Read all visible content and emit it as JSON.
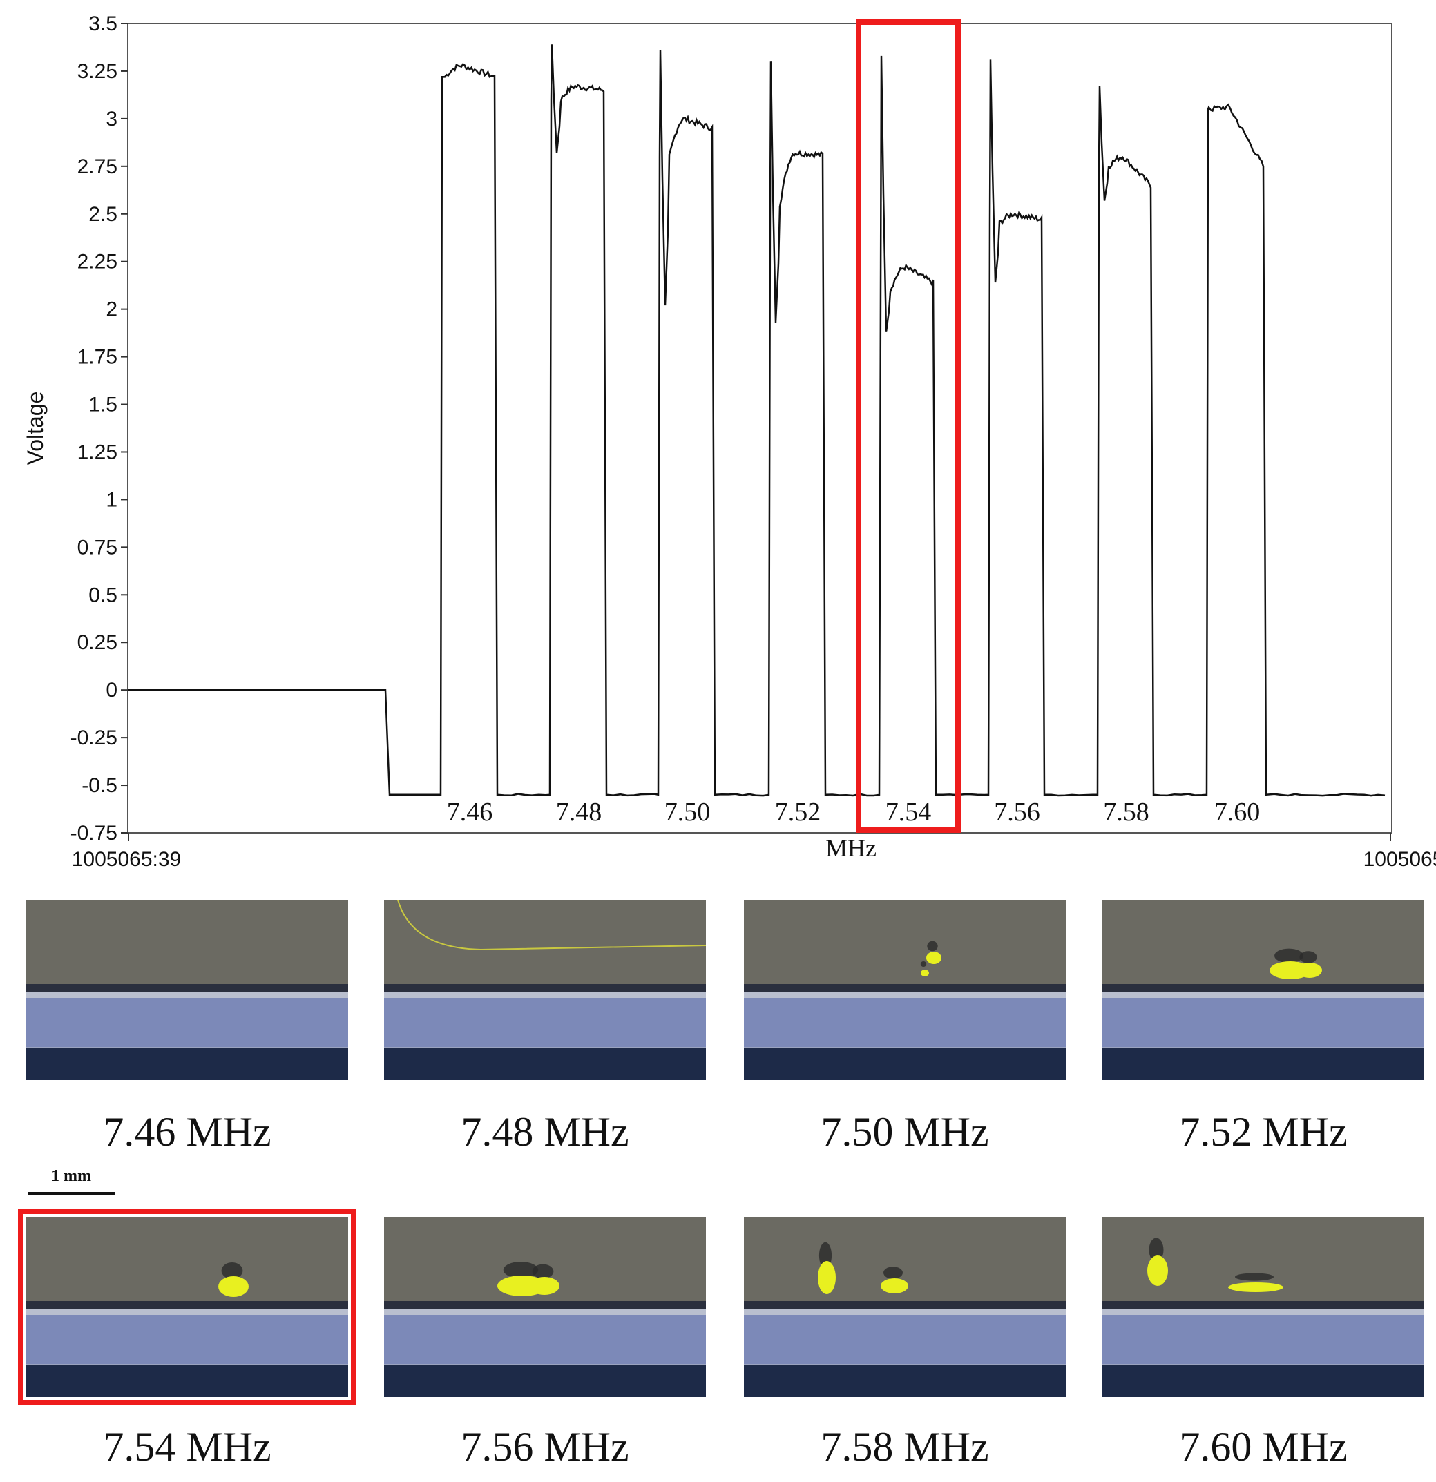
{
  "chart_data": {
    "type": "line",
    "ylabel": "Voltage",
    "xlabel": "MHz",
    "ylim": [
      -0.75,
      3.5
    ],
    "y_ticks": [
      "3.5",
      "3.25",
      "3",
      "2.75",
      "2.5",
      "2.25",
      "2",
      "1.75",
      "1.5",
      "1.25",
      "1",
      "0.75",
      "0.5",
      "0.25",
      "0",
      "-0.25",
      "-0.5",
      "-0.75"
    ],
    "x_range_labels": [
      "1005065:39",
      "1005065"
    ],
    "pulse_labels": [
      "7.46",
      "7.48",
      "7.50",
      "7.52",
      "7.54",
      "7.56",
      "7.58",
      "7.60"
    ],
    "highlighted_pulse": "7.54",
    "highlight_color": "#ee1c1c",
    "line_color": "#111111",
    "grid": false,
    "series": [
      {
        "baseline_before": 0,
        "baseline_between": -0.55,
        "pulses": [
          {
            "label": "7.46",
            "spike": 3.22,
            "plateau_start": 3.22,
            "plateau_peak": 3.28,
            "plateau_end": 3.22
          },
          {
            "label": "7.48",
            "spike": 3.39,
            "dip": 2.82,
            "plateau_start": 3.1,
            "plateau_peak": 3.17,
            "plateau_end": 3.15
          },
          {
            "label": "7.50",
            "spike": 3.36,
            "dip": 2.02,
            "plateau_start": 2.8,
            "plateau_peak": 3.0,
            "plateau_end": 2.95
          },
          {
            "label": "7.52",
            "spike": 3.3,
            "dip": 1.93,
            "plateau_start": 2.55,
            "plateau_peak": 2.82,
            "plateau_end": 2.81
          },
          {
            "label": "7.54",
            "spike": 3.33,
            "dip": 1.88,
            "plateau_start": 2.1,
            "plateau_peak": 2.22,
            "plateau_end": 2.14
          },
          {
            "label": "7.56",
            "spike": 3.31,
            "dip": 2.14,
            "plateau_start": 2.45,
            "plateau_peak": 2.5,
            "plateau_end": 2.47
          },
          {
            "label": "7.58",
            "spike": 3.17,
            "dip": 2.57,
            "plateau_start": 2.75,
            "plateau_peak": 2.8,
            "plateau_end": 2.65
          },
          {
            "label": "7.60",
            "spike": 3.06,
            "plateau_start": 3.05,
            "plateau_peak": 3.06,
            "plateau_end": 2.75
          }
        ]
      }
    ]
  },
  "frames": [
    {
      "caption": "7.46 MHz",
      "blob": "none",
      "highlighted": false
    },
    {
      "caption": "7.48 MHz",
      "blob": "streak",
      "highlighted": false
    },
    {
      "caption": "7.50 MHz",
      "blob": "small",
      "highlighted": false
    },
    {
      "caption": "7.52 MHz",
      "blob": "cluster",
      "highlighted": false
    },
    {
      "caption": "7.54 MHz",
      "blob": "round",
      "highlighted": true
    },
    {
      "caption": "7.56 MHz",
      "blob": "wide",
      "highlighted": false
    },
    {
      "caption": "7.58 MHz",
      "blob": "split",
      "highlighted": false
    },
    {
      "caption": "7.60 MHz",
      "blob": "trail",
      "highlighted": false
    }
  ],
  "scale_bar": {
    "label": "1 mm"
  },
  "colors": {
    "fluorescence": "#e8f020",
    "tissue_top": "#6b6a62",
    "channel": "#7c89b8",
    "bottom": "#1d2a48"
  }
}
